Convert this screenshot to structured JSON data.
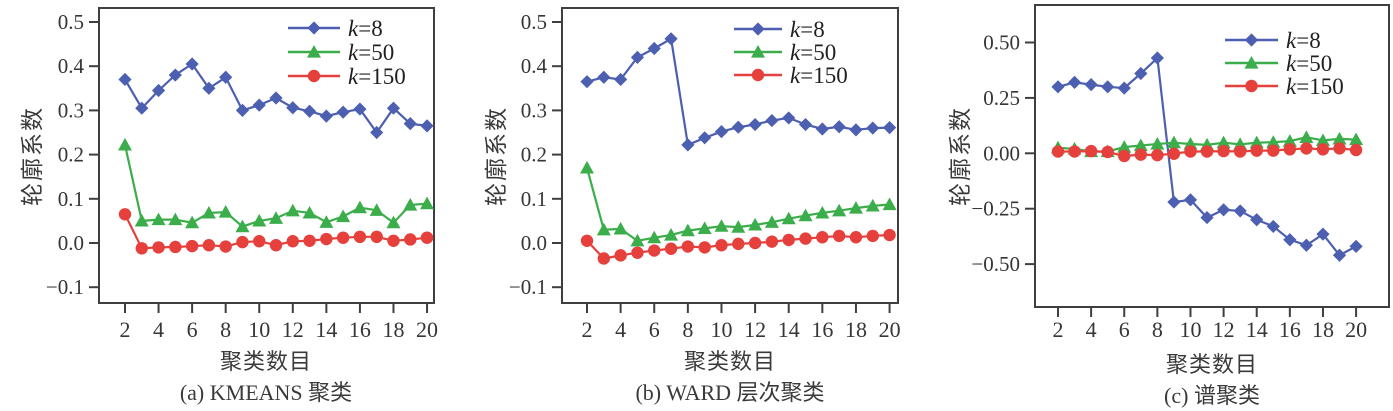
{
  "figure": {
    "colors": {
      "axis": "#3f3f3f",
      "text": "#363636",
      "k8": "#4c5fb0",
      "k50": "#3bae4b",
      "k150": "#e6403c"
    }
  },
  "chart_data": [
    {
      "type": "line",
      "caption": "(a) KMEANS 聚类",
      "xlabel": "聚类数目",
      "ylabel": "轮廓系数",
      "x": [
        2,
        3,
        4,
        5,
        6,
        7,
        8,
        9,
        10,
        11,
        12,
        13,
        14,
        15,
        16,
        17,
        18,
        19,
        20
      ],
      "xticks": [
        2,
        4,
        6,
        8,
        10,
        12,
        14,
        16,
        18,
        20
      ],
      "xtick_labels": [
        "2",
        "4",
        "6",
        "8",
        "10",
        "12",
        "14",
        "16",
        "18",
        "20"
      ],
      "yticks": [
        0.5,
        0.4,
        0.3,
        0.2,
        0.1,
        0,
        -0.1
      ],
      "ytick_labels": [
        "0.5",
        "0.4",
        "0.3",
        "0.2",
        "0.1",
        "0.0",
        "−0.1"
      ],
      "ylim": [
        -0.136,
        0.53
      ],
      "xlim": [
        0.5,
        20.4
      ],
      "grid": false,
      "legend_position": "top-right",
      "series": [
        {
          "name": "k=8",
          "name_var": "k",
          "name_rest": "=8",
          "marker": "diamond",
          "color_key": "k8",
          "values": [
            0.37,
            0.305,
            0.345,
            0.38,
            0.405,
            0.35,
            0.375,
            0.3,
            0.312,
            0.328,
            0.306,
            0.298,
            0.287,
            0.296,
            0.303,
            0.25,
            0.305,
            0.27,
            0.265
          ]
        },
        {
          "name": "k=50",
          "name_var": "k",
          "name_rest": "=50",
          "marker": "triangle",
          "color_key": "k50",
          "values": [
            0.222,
            0.05,
            0.053,
            0.053,
            0.046,
            0.068,
            0.07,
            0.037,
            0.05,
            0.056,
            0.073,
            0.068,
            0.047,
            0.06,
            0.08,
            0.074,
            0.046,
            0.086,
            0.089
          ]
        },
        {
          "name": "k=150",
          "name_var": "k",
          "name_rest": "=150",
          "marker": "circle",
          "color_key": "k150",
          "values": [
            0.065,
            -0.012,
            -0.01,
            -0.009,
            -0.007,
            -0.005,
            -0.008,
            0.002,
            0.004,
            -0.005,
            0.004,
            0.005,
            0.009,
            0.012,
            0.014,
            0.014,
            0.005,
            0.008,
            0.012
          ]
        }
      ]
    },
    {
      "type": "line",
      "caption": "(b) WARD 层次聚类",
      "xlabel": "聚类数目",
      "ylabel": "轮廓系数",
      "x": [
        2,
        3,
        4,
        5,
        6,
        7,
        8,
        9,
        10,
        11,
        12,
        13,
        14,
        15,
        16,
        17,
        18,
        19,
        20
      ],
      "xticks": [
        2,
        4,
        6,
        8,
        10,
        12,
        14,
        16,
        18,
        20
      ],
      "xtick_labels": [
        "2",
        "4",
        "6",
        "8",
        "10",
        "12",
        "14",
        "16",
        "18",
        "20"
      ],
      "yticks": [
        0.5,
        0.4,
        0.3,
        0.2,
        0.1,
        0,
        -0.1
      ],
      "ytick_labels": [
        "0.5",
        "0.4",
        "0.3",
        "0.2",
        "0.1",
        "0.0",
        "−0.1"
      ],
      "ylim": [
        -0.136,
        0.53
      ],
      "xlim": [
        0.5,
        20.4
      ],
      "grid": false,
      "legend_position": "top-right",
      "series": [
        {
          "name": "k=8",
          "name_var": "k",
          "name_rest": "=8",
          "marker": "diamond",
          "color_key": "k8",
          "values": [
            0.365,
            0.375,
            0.37,
            0.42,
            0.44,
            0.462,
            0.222,
            0.238,
            0.252,
            0.262,
            0.268,
            0.277,
            0.283,
            0.268,
            0.258,
            0.263,
            0.256,
            0.26,
            0.261
          ]
        },
        {
          "name": "k=50",
          "name_var": "k",
          "name_rest": "=50",
          "marker": "triangle",
          "color_key": "k50",
          "values": [
            0.17,
            0.03,
            0.032,
            0.005,
            0.012,
            0.018,
            0.028,
            0.033,
            0.038,
            0.036,
            0.041,
            0.047,
            0.055,
            0.062,
            0.068,
            0.073,
            0.079,
            0.084,
            0.087
          ]
        },
        {
          "name": "k=150",
          "name_var": "k",
          "name_rest": "=150",
          "marker": "circle",
          "color_key": "k150",
          "values": [
            0.005,
            -0.035,
            -0.028,
            -0.022,
            -0.017,
            -0.013,
            -0.008,
            -0.01,
            -0.005,
            -0.002,
            0.0,
            0.003,
            0.007,
            0.01,
            0.013,
            0.016,
            0.013,
            0.016,
            0.018
          ]
        }
      ]
    },
    {
      "type": "line",
      "caption": "(c) 谱聚类",
      "xlabel": "聚类数目",
      "ylabel": "轮廓系数",
      "x": [
        2,
        3,
        4,
        5,
        6,
        7,
        8,
        9,
        10,
        11,
        12,
        13,
        14,
        15,
        16,
        17,
        18,
        19,
        20
      ],
      "xticks": [
        2,
        4,
        6,
        8,
        10,
        12,
        14,
        16,
        18,
        20
      ],
      "xtick_labels": [
        "2",
        "4",
        "6",
        "8",
        "10",
        "12",
        "14",
        "16",
        "18",
        "20"
      ],
      "yticks": [
        0.5,
        0.25,
        0,
        -0.25,
        -0.5
      ],
      "ytick_labels": [
        "0.50",
        "0.25",
        "0.00",
        "−0.25",
        "−0.50"
      ],
      "ylim": [
        -0.69,
        0.67
      ],
      "xlim": [
        0.6,
        20.5
      ],
      "grid": false,
      "legend_position": "top-right",
      "series": [
        {
          "name": "k=8",
          "name_var": "k",
          "name_rest": "=8",
          "marker": "diamond",
          "color_key": "k8",
          "values": [
            0.3,
            0.32,
            0.31,
            0.3,
            0.294,
            0.36,
            0.43,
            -0.22,
            -0.21,
            -0.29,
            -0.255,
            -0.26,
            -0.3,
            -0.33,
            -0.39,
            -0.415,
            -0.365,
            -0.46,
            -0.42
          ]
        },
        {
          "name": "k=50",
          "name_var": "k",
          "name_rest": "=50",
          "marker": "triangle",
          "color_key": "k50",
          "values": [
            0.025,
            0.02,
            0.008,
            0.008,
            0.028,
            0.035,
            0.042,
            0.048,
            0.042,
            0.038,
            0.048,
            0.04,
            0.048,
            0.05,
            0.055,
            0.072,
            0.058,
            0.065,
            0.062
          ]
        },
        {
          "name": "k=150",
          "name_var": "k",
          "name_rest": "=150",
          "marker": "circle",
          "color_key": "k150",
          "values": [
            0.008,
            0.008,
            0.01,
            0.006,
            -0.012,
            -0.006,
            -0.008,
            -0.002,
            0.008,
            0.008,
            0.01,
            0.008,
            0.012,
            0.012,
            0.018,
            0.022,
            0.018,
            0.022,
            0.015
          ]
        }
      ]
    }
  ]
}
